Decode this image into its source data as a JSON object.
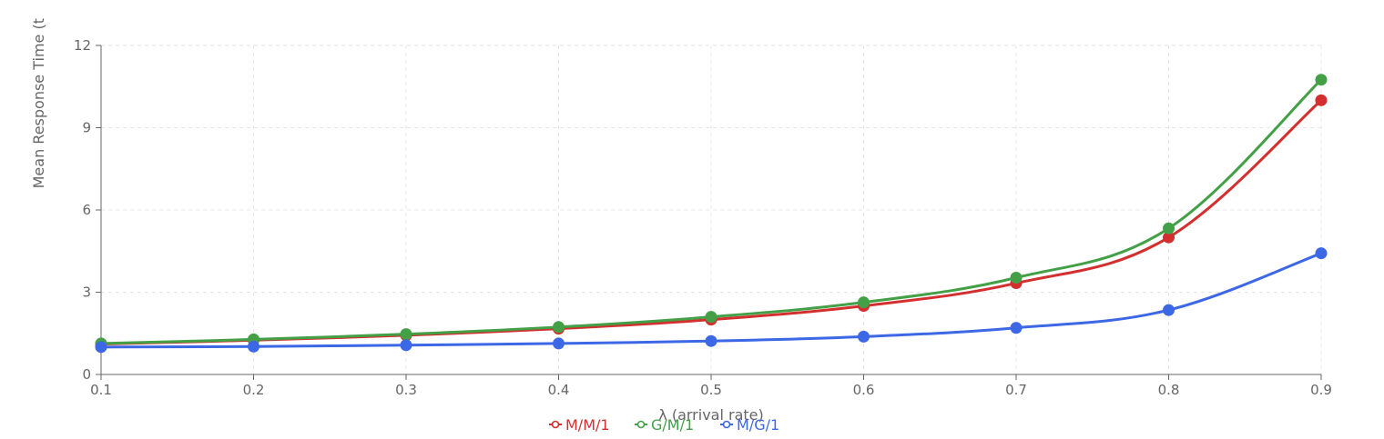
{
  "chart_data": {
    "type": "line",
    "xlabel": "λ (arrival rate)",
    "ylabel": "Mean Response Time (t",
    "x": [
      0.1,
      0.2,
      0.3,
      0.4,
      0.5,
      0.6,
      0.7,
      0.8,
      0.9
    ],
    "x_ticks": [
      "0.1",
      "0.2",
      "0.3",
      "0.4",
      "0.5",
      "0.6",
      "0.7",
      "0.8",
      "0.9"
    ],
    "y_ticks": [
      "0",
      "3",
      "6",
      "9",
      "12"
    ],
    "xlim": [
      0.1,
      0.9
    ],
    "ylim": [
      0,
      12
    ],
    "grid": true,
    "legend_position": "bottom",
    "series": [
      {
        "name": "M/M/1",
        "color": "#d32f2f",
        "values": [
          1.11,
          1.25,
          1.43,
          1.67,
          2.0,
          2.5,
          3.33,
          5.0,
          10.0
        ]
      },
      {
        "name": "G/M/1",
        "color": "#43a047",
        "values": [
          1.13,
          1.28,
          1.47,
          1.73,
          2.1,
          2.63,
          3.53,
          5.33,
          10.75
        ]
      },
      {
        "name": "M/G/1",
        "color": "#3d68e5",
        "values": [
          1.0,
          1.02,
          1.07,
          1.13,
          1.22,
          1.38,
          1.7,
          2.35,
          4.42
        ]
      }
    ]
  }
}
